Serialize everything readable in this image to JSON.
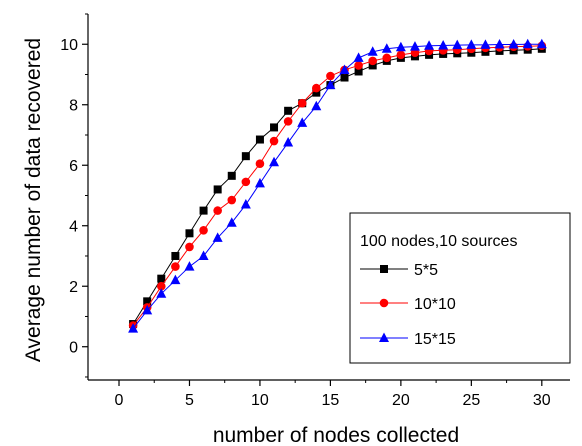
{
  "chart_data": {
    "type": "line",
    "title": "",
    "xlabel": "number of nodes collected",
    "ylabel": "Average number of data recovered",
    "xlim": [
      -2.2,
      32
    ],
    "ylim": [
      -1.1,
      11
    ],
    "xticks": [
      0,
      5,
      10,
      15,
      20,
      25,
      30
    ],
    "yticks": [
      0,
      2,
      4,
      6,
      8,
      10
    ],
    "grid": false,
    "legend": {
      "title": "100 nodes,10 sources",
      "position": "right"
    },
    "x": [
      1,
      2,
      3,
      4,
      5,
      6,
      7,
      8,
      9,
      10,
      11,
      12,
      13,
      14,
      15,
      16,
      17,
      18,
      19,
      20,
      21,
      22,
      23,
      24,
      25,
      26,
      27,
      28,
      29,
      30
    ],
    "series": [
      {
        "name": "5*5",
        "color": "#000000",
        "marker": "square",
        "values": [
          0.75,
          1.5,
          2.25,
          3.0,
          3.75,
          4.5,
          5.2,
          5.65,
          6.3,
          6.85,
          7.25,
          7.8,
          8.05,
          8.4,
          8.65,
          8.9,
          9.1,
          9.3,
          9.45,
          9.55,
          9.6,
          9.65,
          9.68,
          9.7,
          9.72,
          9.75,
          9.78,
          9.8,
          9.82,
          9.85
        ]
      },
      {
        "name": "10*10",
        "color": "#ff0000",
        "marker": "circle",
        "values": [
          0.7,
          1.3,
          2.0,
          2.65,
          3.3,
          3.85,
          4.5,
          4.85,
          5.45,
          6.05,
          6.8,
          7.45,
          8.05,
          8.55,
          8.95,
          9.15,
          9.3,
          9.45,
          9.55,
          9.65,
          9.72,
          9.78,
          9.8,
          9.82,
          9.85,
          9.88,
          9.9,
          9.92,
          9.93,
          9.95
        ]
      },
      {
        "name": "15*15",
        "color": "#0000ff",
        "marker": "triangle",
        "values": [
          0.6,
          1.2,
          1.75,
          2.2,
          2.65,
          3.0,
          3.6,
          4.1,
          4.7,
          5.4,
          6.1,
          6.75,
          7.4,
          7.95,
          8.65,
          9.15,
          9.55,
          9.75,
          9.85,
          9.9,
          9.92,
          9.95,
          9.96,
          9.97,
          9.98,
          9.98,
          9.99,
          9.99,
          10.0,
          10.0
        ]
      }
    ]
  }
}
